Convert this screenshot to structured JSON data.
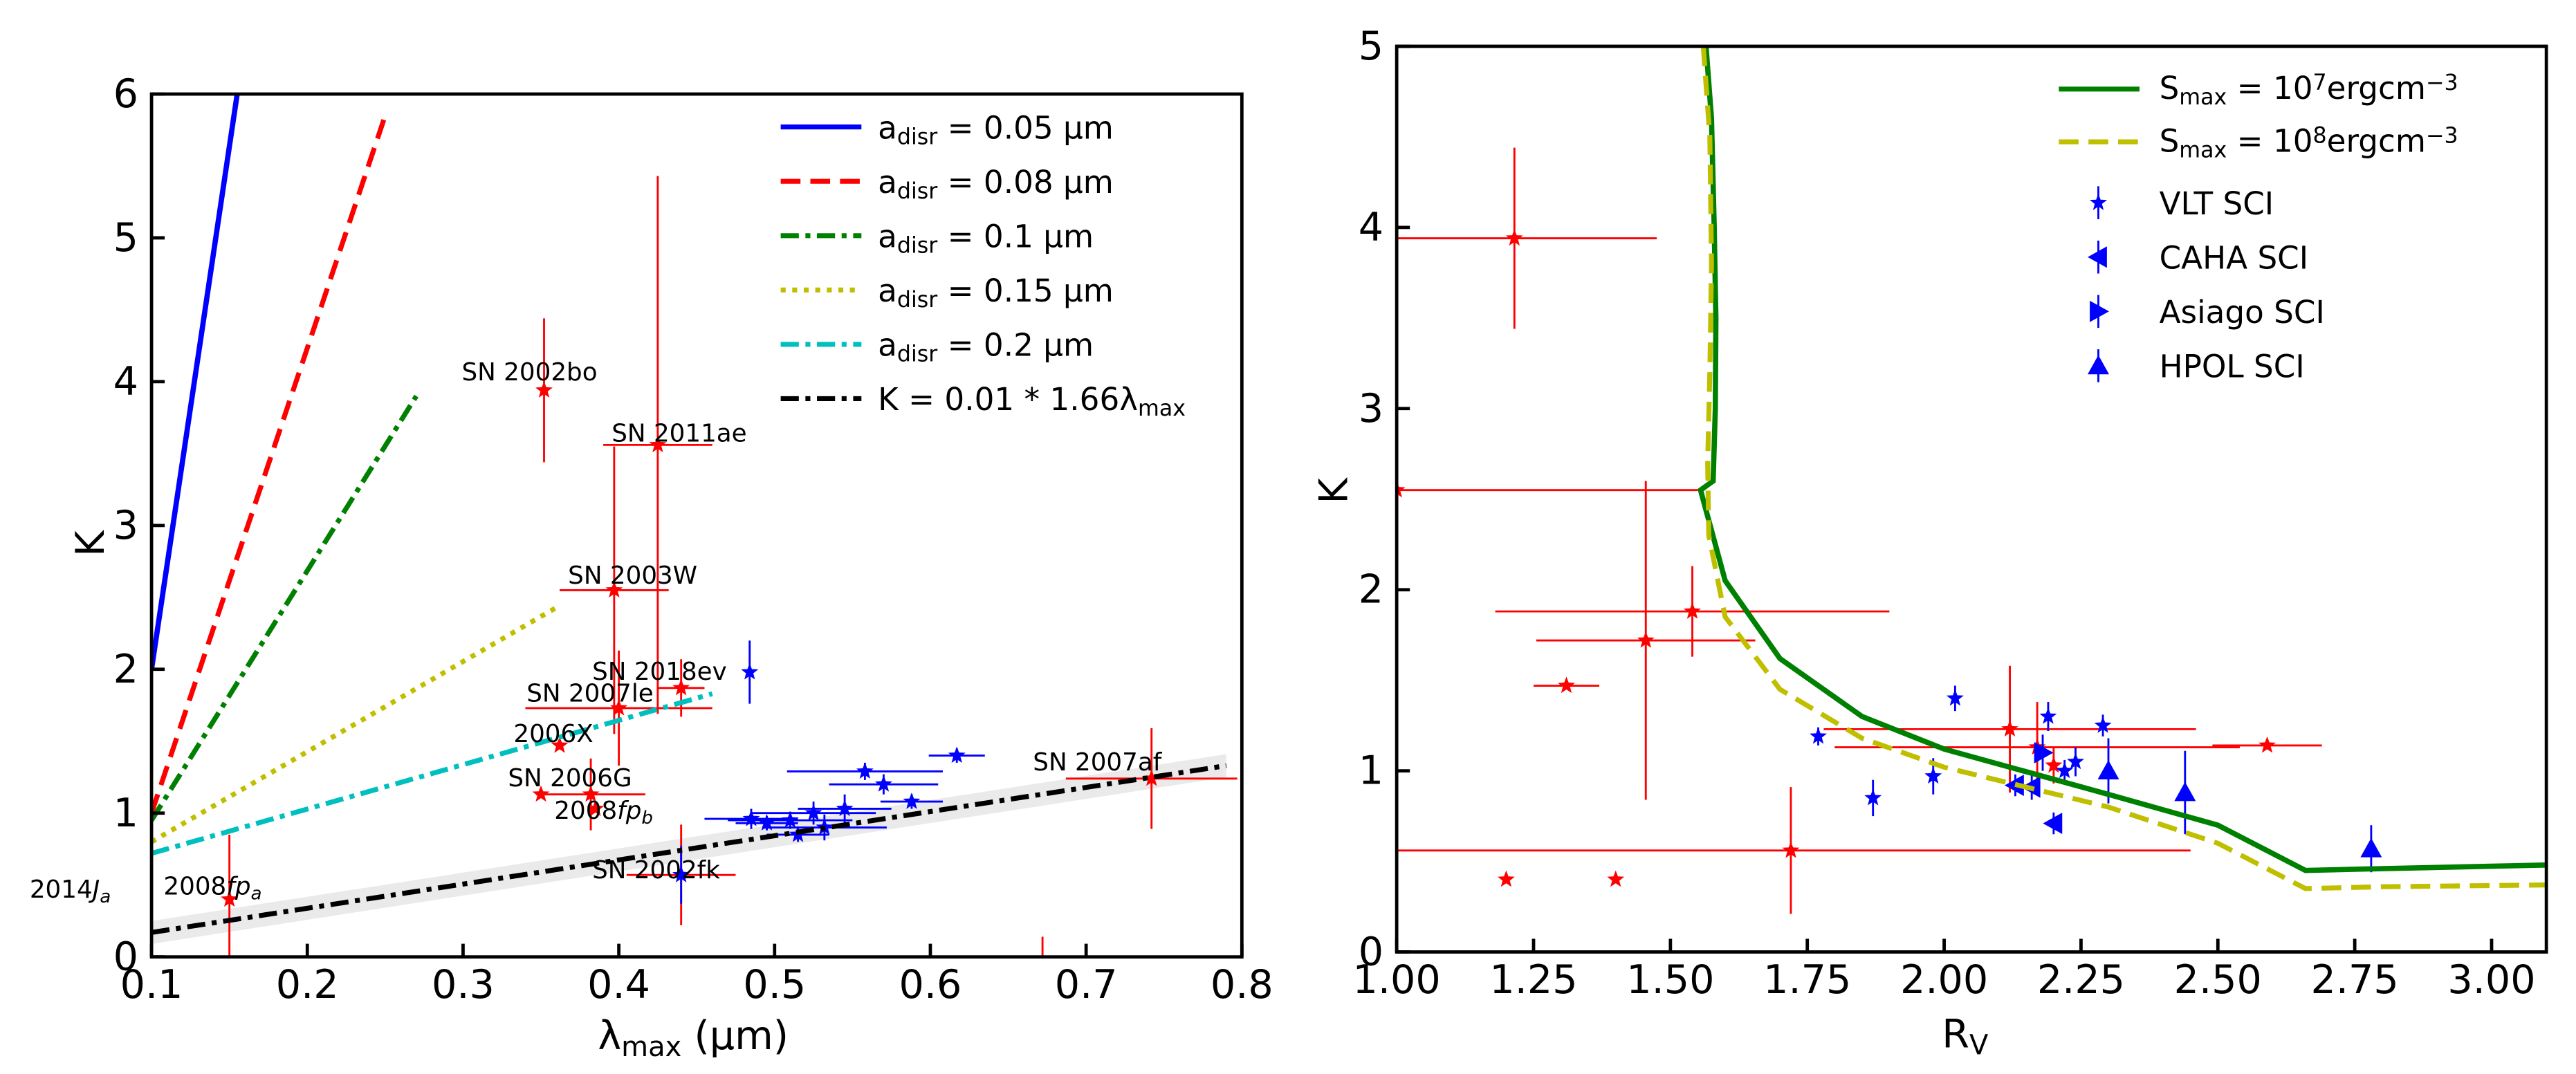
{
  "chart_data": [
    {
      "type": "line",
      "panel": "left",
      "xlabel": "λmax (μm)",
      "ylabel": "K",
      "xlim": [
        0.1,
        0.8
      ],
      "ylim": [
        0,
        6
      ],
      "xticks": [
        "0.1",
        "0.2",
        "0.3",
        "0.4",
        "0.5",
        "0.6",
        "0.7",
        "0.8"
      ],
      "yticks": [
        "0",
        "1",
        "2",
        "3",
        "4",
        "5",
        "6"
      ],
      "series": [
        {
          "id": "a005",
          "legend_sub": "disr",
          "legend_rest": " = 0.05 μm",
          "color": "#0000ff",
          "dash": "solid",
          "x": [
            0.1,
            0.155
          ],
          "y": [
            2.0,
            6.0
          ]
        },
        {
          "id": "a008",
          "legend_sub": "disr",
          "legend_rest": " = 0.08 μm",
          "color": "#ff0000",
          "dash": "dashed",
          "x": [
            0.1,
            0.25
          ],
          "y": [
            1.0,
            5.85
          ]
        },
        {
          "id": "a01",
          "legend_sub": "disr",
          "legend_rest": " = 0.1 μm",
          "color": "#008000",
          "dash": "dashdot",
          "x": [
            0.1,
            0.27
          ],
          "y": [
            0.95,
            3.9
          ]
        },
        {
          "id": "a015",
          "legend_sub": "disr",
          "legend_rest": " = 0.15 μm",
          "color": "#bfbf00",
          "dash": "dotted",
          "x": [
            0.1,
            0.36
          ],
          "y": [
            0.8,
            2.43
          ]
        },
        {
          "id": "a02",
          "legend_sub": "disr",
          "legend_rest": " = 0.2 μm",
          "color": "#00bfbf",
          "dash": "dashdot",
          "x": [
            0.1,
            0.46
          ],
          "y": [
            0.72,
            1.83
          ]
        },
        {
          "id": "kfit",
          "legend_pre": "K = 0.01 * 1.66λ",
          "legend_sub": "max",
          "color": "#000000",
          "dash": "dashdot",
          "x": [
            0.1,
            0.79
          ],
          "y": [
            0.17,
            1.33
          ],
          "band": 0.08
        }
      ],
      "points_red": [
        {
          "label": "SN 2002bo",
          "x": 0.352,
          "y": 3.94,
          "xerr": 0.0,
          "yerr": 0.5
        },
        {
          "label": "SN 2011ae",
          "x": 0.425,
          "y": 3.56,
          "xerr": 0.035,
          "yerr": 1.87
        },
        {
          "label": "SN 2003W",
          "x": 0.397,
          "y": 2.55,
          "xerr": 0.035,
          "yerr": 1.0
        },
        {
          "label": "SN 2018ev",
          "x": 0.44,
          "y": 1.87,
          "xerr": 0.015,
          "yerr": 0.2
        },
        {
          "label": "SN 2007le",
          "x": 0.4,
          "y": 1.73,
          "xerr": 0.06,
          "yerr": 0.4
        },
        {
          "label": "2006X",
          "x": 0.362,
          "y": 1.47,
          "xerr": 0.0,
          "yerr": 0.0
        },
        {
          "label": "SN 2006G",
          "x": 0.35,
          "y": 1.13,
          "xerr": 0.0,
          "yerr": 0.0
        },
        {
          "label": "",
          "x": 0.382,
          "y": 1.13,
          "xerr": 0.035,
          "yerr": 0.25
        },
        {
          "label": "2008fp_b",
          "x": 0.385,
          "y": 1.03,
          "xerr": 0.0,
          "yerr": 0.0
        },
        {
          "label": "SN 2007af",
          "x": 0.742,
          "y": 1.24,
          "xerr": 0.055,
          "yerr": 0.35
        },
        {
          "label": "SN 2002fk",
          "x": 0.44,
          "y": 0.57,
          "xerr": 0.035,
          "yerr": 0.35
        },
        {
          "label": "2008fp_a",
          "x": 0.15,
          "y": 0.4,
          "xerr": 0.0,
          "yerr": 0.45
        }
      ],
      "points_blue": [
        {
          "x": 0.484,
          "y": 1.98,
          "xerr": 0.0,
          "yerr": 0.22
        },
        {
          "x": 0.617,
          "y": 1.4,
          "xerr": 0.018,
          "yerr": 0.05
        },
        {
          "x": 0.558,
          "y": 1.29,
          "xerr": 0.05,
          "yerr": 0.06
        },
        {
          "x": 0.57,
          "y": 1.2,
          "xerr": 0.035,
          "yerr": 0.07
        },
        {
          "x": 0.588,
          "y": 1.08,
          "xerr": 0.02,
          "yerr": 0.05
        },
        {
          "x": 0.545,
          "y": 1.03,
          "xerr": 0.03,
          "yerr": 0.1
        },
        {
          "x": 0.525,
          "y": 1.0,
          "xerr": 0.04,
          "yerr": 0.08
        },
        {
          "x": 0.51,
          "y": 0.95,
          "xerr": 0.04,
          "yerr": 0.06
        },
        {
          "x": 0.485,
          "y": 0.96,
          "xerr": 0.03,
          "yerr": 0.07
        },
        {
          "x": 0.495,
          "y": 0.93,
          "xerr": 0.02,
          "yerr": 0.05
        },
        {
          "x": 0.532,
          "y": 0.9,
          "xerr": 0.04,
          "yerr": 0.09
        },
        {
          "x": 0.515,
          "y": 0.85,
          "xerr": 0.02,
          "yerr": 0.05
        },
        {
          "x": 0.44,
          "y": 0.57,
          "xerr": 0.0,
          "yerr": 0.2
        }
      ],
      "ann_extra": [
        {
          "label": "2014J_a",
          "x": 0.04,
          "y": 0.48
        }
      ]
    },
    {
      "type": "line",
      "panel": "right",
      "xlabel": "RV",
      "ylabel": "K",
      "xlim": [
        1.0,
        3.1
      ],
      "ylim": [
        0,
        5
      ],
      "xticks": [
        "1.00",
        "1.25",
        "1.50",
        "1.75",
        "2.00",
        "2.25",
        "2.50",
        "2.75",
        "3.00"
      ],
      "yticks": [
        "0",
        "1",
        "2",
        "3",
        "4",
        "5"
      ],
      "series": [
        {
          "id": "smax7",
          "legend_pre": "S",
          "legend_sub": "max",
          "legend_rest": " = 10",
          "legend_sup": "7",
          "legend_post": "ergcm",
          "legend_sup2": "−3",
          "color": "#008000",
          "dash": "solid",
          "x": [
            1.565,
            1.575,
            1.58,
            1.583,
            1.582,
            1.578,
            1.555,
            1.6,
            1.7,
            1.85,
            2.0,
            2.3,
            2.5,
            2.66,
            2.8,
            3.1
          ],
          "y": [
            5.0,
            4.6,
            4.0,
            3.5,
            3.0,
            2.6,
            2.55,
            2.05,
            1.62,
            1.3,
            1.12,
            0.87,
            0.7,
            0.45,
            0.46,
            0.48
          ]
        },
        {
          "id": "smax8",
          "legend_pre": "S",
          "legend_sub": "max",
          "legend_rest": " = 10",
          "legend_sup": "8",
          "legend_post": "ergcm",
          "legend_sup2": "−3",
          "color": "#bfbf00",
          "dash": "dashed",
          "x": [
            1.56,
            1.572,
            1.575,
            1.572,
            1.568,
            1.57,
            1.6,
            1.7,
            1.85,
            2.0,
            2.3,
            2.5,
            2.66,
            2.8,
            3.1
          ],
          "y": [
            5.0,
            4.5,
            3.8,
            3.2,
            2.7,
            2.3,
            1.85,
            1.45,
            1.18,
            1.02,
            0.8,
            0.6,
            0.35,
            0.36,
            0.37
          ]
        }
      ],
      "legend_markers": [
        {
          "label": "VLT SCI",
          "marker": "star"
        },
        {
          "label": "CAHA SCI",
          "marker": "tri-left"
        },
        {
          "label": "Asiago SCI",
          "marker": "tri-right"
        },
        {
          "label": "HPOL SCI",
          "marker": "tri-up"
        }
      ],
      "points_red": [
        {
          "x": 1.215,
          "y": 3.94,
          "xerr": 0.26,
          "yerr": 0.5
        },
        {
          "x": 1.0,
          "y": 2.55,
          "xerr": 0.55,
          "yerr": 0.0
        },
        {
          "x": 1.455,
          "y": 1.72,
          "xerr": 0.2,
          "yerr": 0.88
        },
        {
          "x": 1.54,
          "y": 1.88,
          "xerr": 0.36,
          "yerr": 0.25
        },
        {
          "x": 1.31,
          "y": 1.47,
          "xerr": 0.06,
          "yerr": 0.0
        },
        {
          "x": 2.12,
          "y": 1.23,
          "xerr": 0.34,
          "yerr": 0.35
        },
        {
          "x": 2.17,
          "y": 1.13,
          "xerr": 0.37,
          "yerr": 0.25
        },
        {
          "x": 2.59,
          "y": 1.14,
          "xerr": 0.1,
          "yerr": 0.0
        },
        {
          "x": 2.2,
          "y": 1.03,
          "xerr": 0.0,
          "yerr": 0.1
        },
        {
          "x": 1.72,
          "y": 0.56,
          "xerr": 0.73,
          "yerr": 0.35
        },
        {
          "x": 1.2,
          "y": 0.4,
          "xerr": 0.0,
          "yerr": 0.0
        },
        {
          "x": 1.4,
          "y": 0.4,
          "xerr": 0.0,
          "yerr": 0.0
        }
      ],
      "points_blue": [
        {
          "x": 2.02,
          "y": 1.4,
          "xerr": 0.0,
          "yerr": 0.07,
          "m": "star"
        },
        {
          "x": 2.19,
          "y": 1.3,
          "xerr": 0.0,
          "yerr": 0.08,
          "m": "star"
        },
        {
          "x": 2.29,
          "y": 1.25,
          "xerr": 0.0,
          "yerr": 0.06,
          "m": "star"
        },
        {
          "x": 1.77,
          "y": 1.19,
          "xerr": 0.0,
          "yerr": 0.05,
          "m": "star"
        },
        {
          "x": 2.18,
          "y": 1.1,
          "xerr": 0.0,
          "yerr": 0.1,
          "m": "tri-right"
        },
        {
          "x": 2.24,
          "y": 1.05,
          "xerr": 0.0,
          "yerr": 0.08,
          "m": "star"
        },
        {
          "x": 2.22,
          "y": 1.0,
          "xerr": 0.0,
          "yerr": 0.06,
          "m": "star"
        },
        {
          "x": 1.98,
          "y": 0.97,
          "xerr": 0.0,
          "yerr": 0.1,
          "m": "star"
        },
        {
          "x": 2.13,
          "y": 0.92,
          "xerr": 0.0,
          "yerr": 0.06,
          "m": "tri-left"
        },
        {
          "x": 2.16,
          "y": 0.91,
          "xerr": 0.0,
          "yerr": 0.07,
          "m": "tri-left"
        },
        {
          "x": 1.87,
          "y": 0.85,
          "xerr": 0.0,
          "yerr": 0.1,
          "m": "star"
        },
        {
          "x": 2.3,
          "y": 1.0,
          "xerr": 0.0,
          "yerr": 0.18,
          "m": "tri-up"
        },
        {
          "x": 2.44,
          "y": 0.88,
          "xerr": 0.0,
          "yerr": 0.23,
          "m": "tri-up"
        },
        {
          "x": 2.2,
          "y": 0.71,
          "xerr": 0.0,
          "yerr": 0.06,
          "m": "tri-left"
        },
        {
          "x": 2.78,
          "y": 0.57,
          "xerr": 0.0,
          "yerr": 0.13,
          "m": "tri-up"
        }
      ]
    }
  ]
}
